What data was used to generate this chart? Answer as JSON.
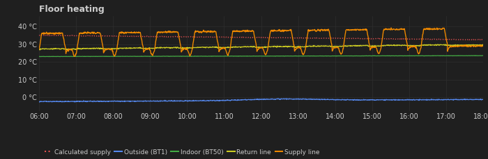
{
  "title": "Floor heating",
  "background_color": "#1f1f1f",
  "text_color": "#cccccc",
  "grid_color": "#2e2e2e",
  "xlim_start": 0,
  "xlim_end": 1,
  "ylim": [
    -8,
    46
  ],
  "yticks": [
    0,
    10,
    20,
    30,
    40
  ],
  "ytick_labels": [
    "0 °C",
    "10 °C",
    "20 °C",
    "30 °C",
    "40 °C"
  ],
  "xtick_labels": [
    "06:00",
    "07:00",
    "08:00",
    "09:00",
    "10:00",
    "11:00",
    "12:00",
    "13:00",
    "14:00",
    "15:00",
    "16:00",
    "17:00",
    "18:00"
  ],
  "series": {
    "calculated_supply": {
      "label": "Calculated supply",
      "color": "#e05050",
      "linewidth": 1.0,
      "linestyle": "dotted",
      "zorder": 3
    },
    "outside": {
      "label": "Outside (BT1)",
      "color": "#5588ee",
      "linewidth": 0.9,
      "linestyle": "solid",
      "zorder": 2
    },
    "indoor": {
      "label": "Indoor (BT50)",
      "color": "#44aa44",
      "linewidth": 0.9,
      "linestyle": "solid",
      "zorder": 2
    },
    "return_line": {
      "label": "Return line",
      "color": "#cccc22",
      "linewidth": 0.9,
      "linestyle": "solid",
      "zorder": 3
    },
    "supply_line": {
      "label": "Supply line",
      "color": "#ee8800",
      "linewidth": 1.0,
      "linestyle": "solid",
      "zorder": 4
    }
  }
}
